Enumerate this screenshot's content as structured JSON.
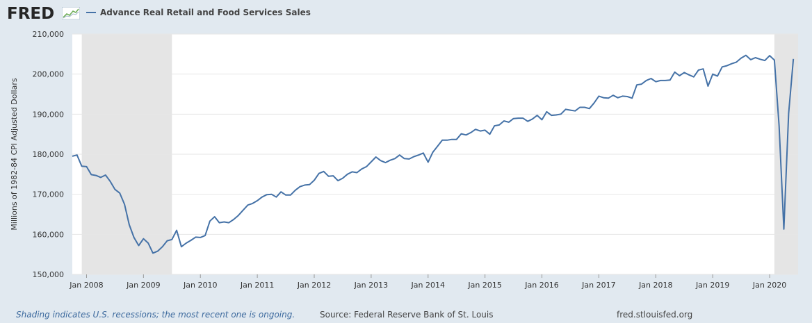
{
  "header": {
    "logo_text": "FRED",
    "legend_label": "Advance Real Retail and Food Services Sales"
  },
  "footer": {
    "note": "Shading indicates U.S. recessions; the most recent one is ongoing.",
    "source": "Source: Federal Reserve Bank of St. Louis",
    "url": "fred.stlouisfed.org"
  },
  "chart_data": {
    "type": "line",
    "title": "",
    "ylabel": "Millions of 1982-84 CPI Adjusted Dollars",
    "xlabel": "",
    "ylim": [
      150000,
      210000
    ],
    "yticks": [
      150000,
      160000,
      170000,
      180000,
      190000,
      200000,
      210000
    ],
    "ytick_labels": [
      "150,000",
      "160,000",
      "170,000",
      "180,000",
      "190,000",
      "200,000",
      "210,000"
    ],
    "xlim": [
      "2007-10",
      "2020-07"
    ],
    "xticks": [
      "2008-01",
      "2009-01",
      "2010-01",
      "2011-01",
      "2012-01",
      "2013-01",
      "2014-01",
      "2015-01",
      "2016-01",
      "2017-01",
      "2018-01",
      "2019-01",
      "2020-01"
    ],
    "xtick_labels": [
      "Jan 2008",
      "Jan 2009",
      "Jan 2010",
      "Jan 2011",
      "Jan 2012",
      "Jan 2013",
      "Jan 2014",
      "Jan 2015",
      "Jan 2016",
      "Jan 2017",
      "Jan 2018",
      "Jan 2019",
      "Jan 2020"
    ],
    "recessions": [
      {
        "start": "2007-12",
        "end": "2009-06"
      },
      {
        "start": "2020-02",
        "end": "2020-07"
      }
    ],
    "grid": true,
    "colors": {
      "line": "#4572a7",
      "recession": "#e5e5e5",
      "grid": "#e6e6e6"
    },
    "series": [
      {
        "name": "Advance Real Retail and Food Services Sales",
        "start": "2007-10",
        "values": [
          179500,
          179800,
          177000,
          176900,
          174900,
          174700,
          174200,
          174800,
          173200,
          171200,
          170300,
          167500,
          162400,
          159200,
          157200,
          158900,
          157800,
          155300,
          155800,
          156900,
          158400,
          158700,
          161000,
          156900,
          157800,
          158500,
          159300,
          159200,
          159700,
          163300,
          164400,
          162900,
          163100,
          162900,
          163700,
          164700,
          166000,
          167300,
          167700,
          168400,
          169300,
          169900,
          170000,
          169300,
          170600,
          169800,
          169800,
          171000,
          171900,
          172300,
          172400,
          173500,
          175200,
          175700,
          174500,
          174600,
          173400,
          174000,
          175000,
          175600,
          175400,
          176300,
          176900,
          178100,
          179300,
          178400,
          177900,
          178500,
          178900,
          179800,
          178900,
          178800,
          179400,
          179800,
          180300,
          178000,
          180500,
          182000,
          183500,
          183500,
          183700,
          183700,
          185100,
          184800,
          185400,
          186200,
          185800,
          186000,
          185000,
          187100,
          187300,
          188300,
          188000,
          188900,
          189000,
          189000,
          188200,
          188800,
          189700,
          188600,
          190600,
          189700,
          189800,
          190000,
          191200,
          191000,
          190800,
          191700,
          191700,
          191400,
          192800,
          194500,
          194100,
          194000,
          194700,
          194100,
          194500,
          194400,
          194000,
          197300,
          197500,
          198400,
          198900,
          198100,
          198400,
          198400,
          198500,
          200500,
          199600,
          200400,
          199800,
          199300,
          201000,
          201300,
          197000,
          200000,
          199500,
          201800,
          202100,
          202600,
          203000,
          204000,
          204700,
          203600,
          204100,
          203700,
          203400,
          204600,
          203500,
          187000,
          161300,
          190200,
          203800
        ]
      }
    ]
  }
}
